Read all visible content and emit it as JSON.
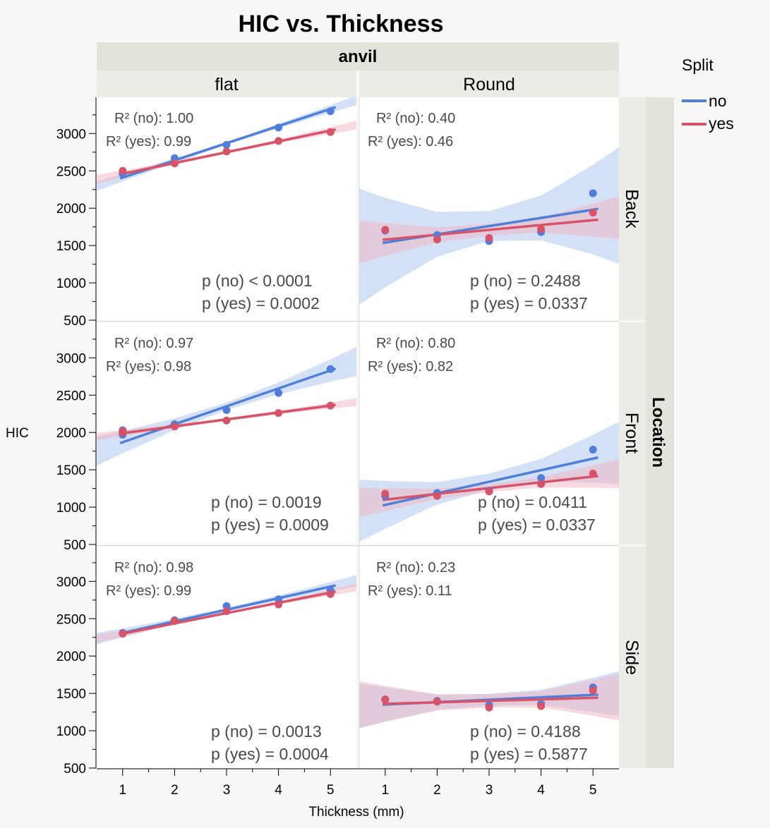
{
  "chart_data": {
    "type": "scatter",
    "title": "HIC vs. Thickness",
    "xlabel": "Thickness (mm)",
    "ylabel": "HIC",
    "col_group_label": "anvil",
    "row_group_label": "Location",
    "columns": [
      "flat",
      "Round"
    ],
    "rows": [
      "Back",
      "Front",
      "Side"
    ],
    "x_ticks": [
      1,
      2,
      3,
      4,
      5
    ],
    "y_ticks": [
      500,
      1000,
      1500,
      2000,
      2500,
      3000
    ],
    "xlim": [
      0.5,
      5.5
    ],
    "ylim": [
      500,
      3440
    ],
    "legend": {
      "title": "Split",
      "position": "right",
      "entries": [
        {
          "name": "no",
          "color": "#4f7fd8"
        },
        {
          "name": "yes",
          "color": "#d6536a"
        }
      ]
    },
    "colors": {
      "no": "#4f7fd8",
      "yes": "#d6536a",
      "no_band": "#a9c1ee",
      "yes_band": "#efb4bf"
    },
    "panels": [
      {
        "row": 0,
        "col": 0,
        "r2_no": "R² (no): 1.00",
        "r2_yes": "R² (yes): 0.99",
        "p_no": "p (no) < 0.0001",
        "p_yes": "p (yes) = 0.0002",
        "no": {
          "x": [
            1,
            2,
            3,
            4,
            5
          ],
          "y": [
            2460,
            2670,
            2850,
            3080,
            3300
          ],
          "fit": [
            2410,
            3330
          ],
          "band": [
            50,
            30,
            20,
            30,
            50
          ]
        },
        "yes": {
          "x": [
            1,
            2,
            3,
            4,
            5
          ],
          "y": [
            2500,
            2600,
            2760,
            2900,
            3020
          ],
          "fit": [
            2460,
            3040
          ],
          "band": [
            45,
            25,
            20,
            25,
            45
          ]
        }
      },
      {
        "row": 0,
        "col": 1,
        "r2_no": "R² (no): 0.40",
        "r2_yes": "R² (yes): 0.46",
        "p_no": "p (no) = 0.2488",
        "p_yes": "p (yes) = 0.0337",
        "no": {
          "x": [
            1,
            2,
            3,
            4,
            5
          ],
          "y": [
            1700,
            1640,
            1560,
            1680,
            2200
          ],
          "fit": [
            1540,
            1980
          ],
          "band": [
            600,
            300,
            200,
            300,
            600
          ]
        },
        "yes": {
          "x": [
            1,
            2,
            3,
            4,
            5
          ],
          "y": [
            1710,
            1580,
            1600,
            1720,
            1940
          ],
          "fit": [
            1580,
            1840
          ],
          "band": [
            220,
            100,
            80,
            100,
            220
          ]
        }
      },
      {
        "row": 1,
        "col": 0,
        "r2_no": "R² (no): 0.97",
        "r2_yes": "R² (yes): 0.98",
        "p_no": "p (no) = 0.0019",
        "p_yes": "p (yes) = 0.0009",
        "no": {
          "x": [
            1,
            1,
            2,
            3,
            4,
            5
          ],
          "y": [
            1970,
            2030,
            2110,
            2300,
            2530,
            2850
          ],
          "fit": [
            1870,
            2830
          ],
          "band": [
            150,
            80,
            50,
            80,
            150
          ]
        },
        "yes": {
          "x": [
            1,
            1,
            2,
            3,
            4,
            5
          ],
          "y": [
            2000,
            2020,
            2080,
            2160,
            2260,
            2360
          ],
          "fit": [
            1990,
            2360
          ],
          "band": [
            40,
            25,
            20,
            25,
            40
          ]
        }
      },
      {
        "row": 1,
        "col": 1,
        "r2_no": "R² (no): 0.80",
        "r2_yes": "R² (yes): 0.82",
        "p_no": "p (no) = 0.0411",
        "p_yes": "p (yes) = 0.0337",
        "no": {
          "x": [
            1,
            2,
            3,
            4,
            5
          ],
          "y": [
            1150,
            1190,
            1220,
            1390,
            1770
          ],
          "fit": [
            1030,
            1650
          ],
          "band": [
            320,
            150,
            110,
            150,
            320
          ]
        },
        "yes": {
          "x": [
            1,
            2,
            3,
            4,
            5
          ],
          "y": [
            1180,
            1150,
            1210,
            1310,
            1450
          ],
          "fit": [
            1100,
            1410
          ],
          "band": [
            150,
            70,
            50,
            70,
            150
          ]
        }
      },
      {
        "row": 2,
        "col": 0,
        "r2_no": "R² (no): 0.98",
        "r2_yes": "R² (yes): 0.99",
        "p_no": "p (no) = 0.0013",
        "p_yes": "p (yes) = 0.0004",
        "no": {
          "x": [
            1,
            2,
            3,
            4,
            5
          ],
          "y": [
            2310,
            2480,
            2670,
            2760,
            2880
          ],
          "fit": [
            2310,
            2930
          ],
          "band": [
            60,
            35,
            25,
            35,
            60
          ]
        },
        "yes": {
          "x": [
            1,
            2,
            3,
            4,
            5
          ],
          "y": [
            2300,
            2470,
            2600,
            2690,
            2830
          ],
          "fit": [
            2300,
            2850
          ],
          "band": [
            40,
            20,
            15,
            20,
            40
          ]
        }
      },
      {
        "row": 2,
        "col": 1,
        "r2_no": "R² (no): 0.23",
        "r2_yes": "R² (yes): 0.11",
        "p_no": "p (no) = 0.4188",
        "p_yes": "p (yes) = 0.5877",
        "no": {
          "x": [
            1,
            2,
            3,
            4,
            5
          ],
          "y": [
            1420,
            1400,
            1340,
            1360,
            1580
          ],
          "fit": [
            1350,
            1480
          ],
          "band": [
            230,
            100,
            80,
            100,
            230
          ]
        },
        "yes": {
          "x": [
            1,
            2,
            3,
            4,
            5
          ],
          "y": [
            1420,
            1390,
            1310,
            1330,
            1540
          ],
          "fit": [
            1360,
            1440
          ],
          "band": [
            240,
            110,
            90,
            110,
            240
          ]
        }
      }
    ]
  }
}
